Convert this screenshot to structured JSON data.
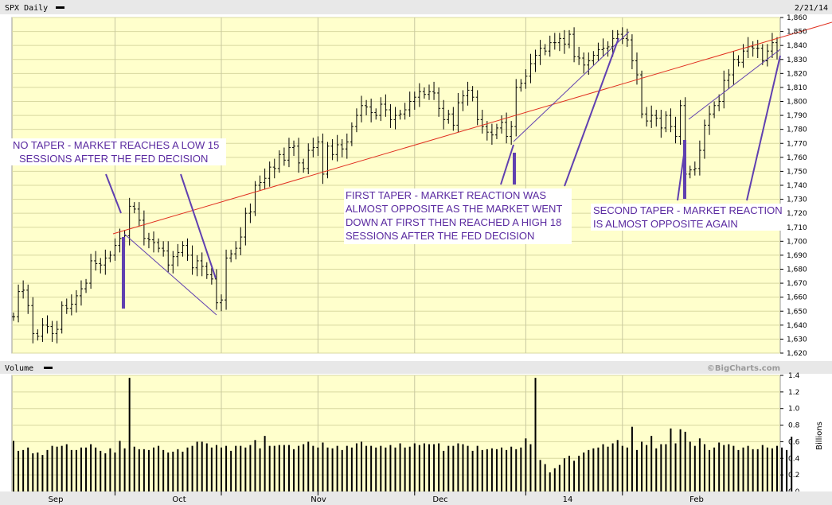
{
  "header": {
    "symbol": "SPX Daily",
    "date": "2/21/14"
  },
  "volume_header": {
    "label": "Volume",
    "credit": "©BigCharts.com"
  },
  "colors": {
    "plot_bg": "#ffffcc",
    "grid": "#d8d8a0",
    "price_bar": "#000000",
    "trend_line": "#e03020",
    "annotation_line": "#6040b0",
    "annotation_text": "#5a2aa0"
  },
  "annotations": [
    {
      "lines": [
        "NO TAPER - MARKET REACHES A LOW 15",
        "SESSIONS AFTER THE FED DECISION"
      ]
    },
    {
      "lines": [
        "FIRST TAPER - MARKET REACTION WAS",
        "ALMOST OPPOSITE AS THE MARKET WENT",
        "DOWN AT FIRST THEN REACHED A HIGH 18",
        "SESSIONS AFTER THE FED DECISION"
      ]
    },
    {
      "lines": [
        "SECOND TAPER - MARKET REACTION",
        "IS ALMOST OPPOSITE AGAIN"
      ]
    }
  ],
  "chart_data": [
    {
      "type": "ohlc",
      "ylim": [
        1620,
        1860
      ],
      "yticks": [
        1620,
        1630,
        1640,
        1650,
        1660,
        1670,
        1680,
        1690,
        1700,
        1710,
        1720,
        1730,
        1740,
        1750,
        1760,
        1770,
        1780,
        1790,
        1800,
        1810,
        1820,
        1830,
        1840,
        1850,
        1860
      ],
      "ytick_labels": [
        "1,620",
        "1,630",
        "1,640",
        "1,650",
        "1,660",
        "1,670",
        "1,680",
        "1,690",
        "1,700",
        "1,710",
        "1,720",
        "1,730",
        "1,740",
        "1,750",
        "1,760",
        "1,770",
        "1,780",
        "1,790",
        "1,800",
        "1,810",
        "1,820",
        "1,830",
        "1,840",
        "1,850",
        "1,860"
      ],
      "xticks": [
        "Sep",
        "Oct",
        "Nov",
        "Dec",
        "14",
        "Feb"
      ],
      "grid": true,
      "series": [
        {
          "values": [
            1646,
            1664,
            1665,
            1654,
            1634,
            1632,
            1640,
            1639,
            1634,
            1637,
            1654,
            1652,
            1655,
            1661,
            1666,
            1670,
            1686,
            1684,
            1683,
            1688,
            1690,
            1697,
            1702,
            1704,
            1725,
            1723,
            1715,
            1702,
            1701,
            1699,
            1695,
            1693,
            1683,
            1689,
            1692,
            1697,
            1690,
            1681,
            1686,
            1682,
            1676,
            1673,
            1656,
            1658,
            1688,
            1691,
            1695,
            1703,
            1720,
            1721,
            1740,
            1742,
            1745,
            1753,
            1752,
            1762,
            1758,
            1767,
            1768,
            1756,
            1752,
            1765,
            1767,
            1771,
            1748,
            1768,
            1762,
            1769,
            1766,
            1771,
            1782,
            1790,
            1797,
            1796,
            1792,
            1790,
            1798,
            1794,
            1787,
            1790,
            1791,
            1794,
            1800,
            1803,
            1807,
            1805,
            1807,
            1806,
            1795,
            1787,
            1791,
            1783,
            1799,
            1804,
            1808,
            1803,
            1787,
            1782,
            1778,
            1776,
            1781,
            1785,
            1775,
            1782,
            1810,
            1813,
            1818,
            1827,
            1833,
            1838,
            1836,
            1842,
            1842,
            1845,
            1841,
            1848,
            1832,
            1831,
            1826,
            1829,
            1833,
            1837,
            1838,
            1839,
            1845,
            1848,
            1845,
            1844,
            1829,
            1819,
            1791,
            1786,
            1790,
            1788,
            1781,
            1790,
            1782,
            1775,
            1797,
            1748,
            1751,
            1752,
            1765,
            1783,
            1791,
            1797,
            1800,
            1815,
            1819,
            1830,
            1828,
            1836,
            1839,
            1838,
            1838,
            1829,
            1836,
            1842,
            1836
          ]
        }
      ]
    },
    {
      "type": "bar",
      "ylabel": "Billions",
      "ylim": [
        0,
        1.4
      ],
      "yticks": [
        0,
        0.2,
        0.4,
        0.6,
        0.8,
        1.0,
        1.2,
        1.4
      ],
      "ytick_labels": [
        "0.0",
        "0.2",
        "0.4",
        "0.6",
        "0.8",
        "1.0",
        "1.2",
        "1.4"
      ],
      "xticks": [
        "Sep",
        "Oct",
        "Nov",
        "Dec",
        "14",
        "Feb"
      ],
      "values": [
        0.61,
        0.49,
        0.5,
        0.53,
        0.46,
        0.47,
        0.44,
        0.5,
        0.55,
        0.54,
        0.55,
        0.57,
        0.5,
        0.5,
        0.53,
        0.53,
        0.57,
        0.53,
        0.49,
        0.46,
        0.52,
        0.47,
        0.61,
        0.52,
        1.37,
        0.54,
        0.51,
        0.51,
        0.5,
        0.53,
        0.55,
        0.5,
        0.47,
        0.48,
        0.51,
        0.48,
        0.53,
        0.55,
        0.6,
        0.6,
        0.58,
        0.53,
        0.56,
        0.53,
        0.55,
        0.49,
        0.55,
        0.55,
        0.53,
        0.56,
        0.62,
        0.52,
        0.67,
        0.55,
        0.55,
        0.56,
        0.56,
        0.56,
        0.51,
        0.55,
        0.57,
        0.6,
        0.55,
        0.53,
        0.59,
        0.53,
        0.52,
        0.55,
        0.5,
        0.55,
        0.53,
        0.58,
        0.6,
        0.55,
        0.55,
        0.53,
        0.55,
        0.53,
        0.56,
        0.53,
        0.58,
        0.53,
        0.54,
        0.58,
        0.56,
        0.58,
        0.57,
        0.57,
        0.58,
        0.49,
        0.55,
        0.55,
        0.58,
        0.57,
        0.55,
        0.49,
        0.55,
        0.5,
        0.51,
        0.52,
        0.51,
        0.53,
        0.5,
        0.54,
        0.51,
        0.53,
        0.64,
        0.57,
        1.37,
        0.38,
        0.33,
        0.23,
        0.28,
        0.32,
        0.4,
        0.43,
        0.37,
        0.43,
        0.47,
        0.5,
        0.52,
        0.53,
        0.57,
        0.54,
        0.58,
        0.62,
        0.55,
        0.53,
        0.78,
        0.5,
        0.6,
        0.56,
        0.67,
        0.52,
        0.57,
        0.57,
        0.76,
        0.58,
        0.75,
        0.72,
        0.6,
        0.55,
        0.64,
        0.57,
        0.5,
        0.53,
        0.59,
        0.56,
        0.57,
        0.55,
        0.5,
        0.53,
        0.55,
        0.51,
        0.51,
        0.56,
        0.53,
        0.52,
        0.55,
        0.53,
        0.5,
        0.66
      ]
    }
  ]
}
